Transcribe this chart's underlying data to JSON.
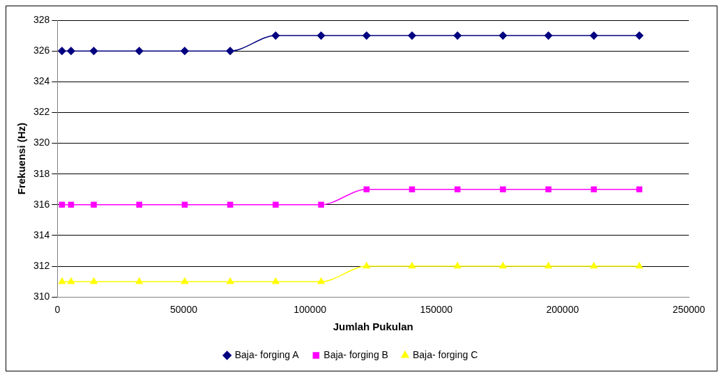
{
  "chart_data": {
    "type": "line",
    "xlabel": "Jumlah Pukulan",
    "ylabel": "Frekuensi (Hz)",
    "x": [
      1800,
      5400,
      14400,
      32400,
      50400,
      68400,
      86400,
      104400,
      122400,
      140400,
      158400,
      176400,
      194400,
      212400,
      230400
    ],
    "xlim": [
      0,
      250000
    ],
    "xticks": [
      0,
      50000,
      100000,
      150000,
      200000,
      250000
    ],
    "ylim": [
      310,
      328
    ],
    "yticks": [
      310,
      312,
      314,
      316,
      318,
      320,
      322,
      324,
      326,
      328
    ],
    "grid": "y",
    "legend": "bottom",
    "series": [
      {
        "name": "Baja- forging A",
        "color": "#000080",
        "marker": "diamond",
        "values": [
          326,
          326,
          326,
          326,
          326,
          326,
          327,
          327,
          327,
          327,
          327,
          327,
          327,
          327,
          327
        ]
      },
      {
        "name": "Baja- forging B",
        "color": "#ff00ff",
        "marker": "square",
        "values": [
          316,
          316,
          316,
          316,
          316,
          316,
          316,
          316,
          317,
          317,
          317,
          317,
          317,
          317,
          317
        ]
      },
      {
        "name": "Baja- forging C",
        "color": "#ffff00",
        "marker": "triangle",
        "values": [
          311,
          311,
          311,
          311,
          311,
          311,
          311,
          311,
          312,
          312,
          312,
          312,
          312,
          312,
          312
        ]
      }
    ]
  }
}
